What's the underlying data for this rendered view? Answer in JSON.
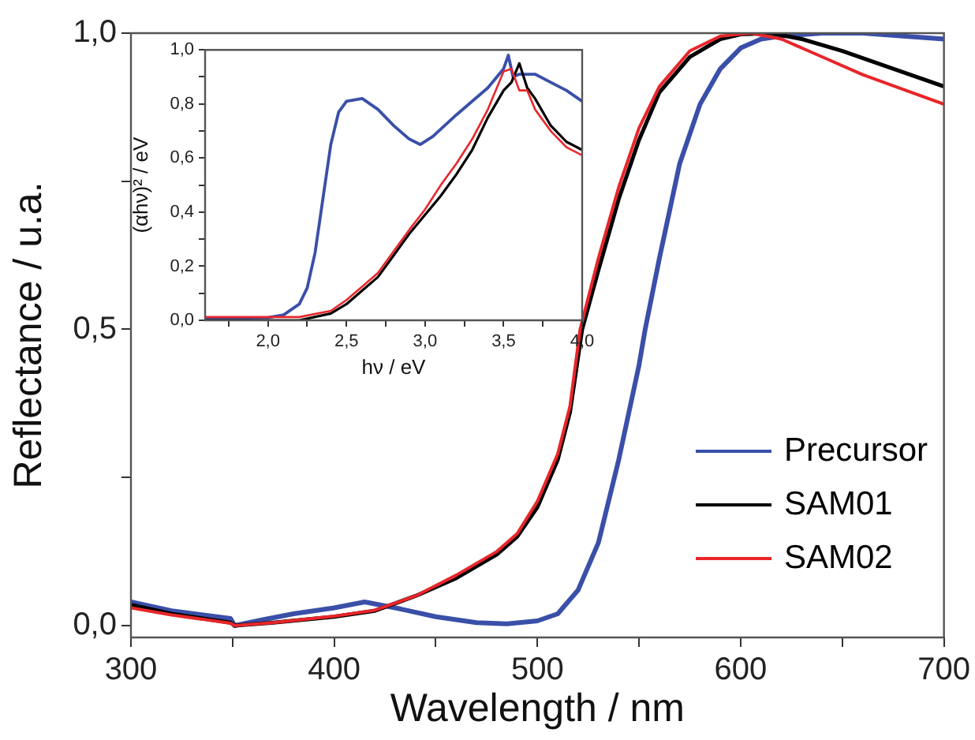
{
  "chart_data": [
    {
      "type": "line",
      "xlabel": "Wavelength / nm",
      "ylabel": "Reflectance / u.a.",
      "xlim": [
        300,
        700
      ],
      "ylim": [
        -0.02,
        1.0
      ],
      "xticks": [
        300,
        {
          "value": 350,
          "label": null
        },
        400,
        {
          "value": 450,
          "label": null
        },
        500,
        {
          "value": 550,
          "label": null
        },
        600,
        {
          "value": 650,
          "label": null
        },
        700
      ],
      "yticks": [
        {
          "value": 0,
          "label": "0,0"
        },
        {
          "value": 0.25,
          "label": null
        },
        {
          "value": 0.5,
          "label": "0,5"
        },
        {
          "value": 0.75,
          "label": null
        },
        {
          "value": 1.0,
          "label": "1,0"
        }
      ],
      "grid": false,
      "legend": "bottom right",
      "series": [
        {
          "name": "Precursor",
          "color": "#3a4fa8",
          "x": [
            300,
            320,
            349,
            351,
            365,
            380,
            400,
            415,
            430,
            450,
            470,
            485,
            500,
            510,
            520,
            530,
            540,
            550,
            553,
            560,
            570,
            580,
            590,
            600,
            610,
            620,
            640,
            660,
            680,
            700
          ],
          "values": [
            0.04,
            0.025,
            0.012,
            0.0,
            0.01,
            0.02,
            0.03,
            0.04,
            0.03,
            0.015,
            0.005,
            0.003,
            0.008,
            0.02,
            0.06,
            0.14,
            0.28,
            0.44,
            0.5,
            0.62,
            0.78,
            0.88,
            0.94,
            0.975,
            0.99,
            0.995,
            1.0,
            1.0,
            0.995,
            0.99
          ]
        },
        {
          "name": "SAM01",
          "color": "#000000",
          "x": [
            300,
            320,
            349,
            351,
            370,
            400,
            420,
            440,
            460,
            480,
            490,
            500,
            510,
            516,
            522,
            530,
            540,
            550,
            560,
            575,
            590,
            600,
            615,
            630,
            650,
            675,
            700
          ],
          "values": [
            0.035,
            0.02,
            0.005,
            0.0,
            0.005,
            0.015,
            0.025,
            0.05,
            0.08,
            0.12,
            0.15,
            0.2,
            0.28,
            0.36,
            0.5,
            0.6,
            0.72,
            0.82,
            0.9,
            0.96,
            0.99,
            0.998,
            1.0,
            0.99,
            0.97,
            0.94,
            0.91
          ]
        },
        {
          "name": "SAM02",
          "color": "#e8262a",
          "x": [
            300,
            320,
            349,
            351,
            370,
            400,
            420,
            440,
            460,
            480,
            490,
            500,
            510,
            516,
            521,
            530,
            540,
            550,
            560,
            575,
            590,
            605,
            620,
            640,
            660,
            680,
            700
          ],
          "values": [
            0.03,
            0.018,
            0.004,
            0.0,
            0.005,
            0.016,
            0.026,
            0.05,
            0.085,
            0.125,
            0.155,
            0.21,
            0.29,
            0.37,
            0.5,
            0.62,
            0.74,
            0.84,
            0.91,
            0.97,
            0.995,
            1.0,
            0.99,
            0.96,
            0.93,
            0.905,
            0.88
          ]
        }
      ]
    },
    {
      "type": "line",
      "xlabel": "hν / eV",
      "ylabel": "(αhν)² / eV",
      "xlim": [
        1.6,
        4.0
      ],
      "ylim": [
        0,
        1.0
      ],
      "xticks": [
        {
          "value": 1.75,
          "label": null
        },
        {
          "value": 2.0,
          "label": "2,0"
        },
        {
          "value": 2.25,
          "label": null
        },
        {
          "value": 2.5,
          "label": "2,5"
        },
        {
          "value": 2.75,
          "label": null
        },
        {
          "value": 3.0,
          "label": "3,0"
        },
        {
          "value": 3.25,
          "label": null
        },
        {
          "value": 3.5,
          "label": "3,5"
        },
        {
          "value": 3.75,
          "label": null
        },
        {
          "value": 4.0,
          "label": "4,0"
        }
      ],
      "yticks": [
        {
          "value": 0,
          "label": "0,0"
        },
        {
          "value": 0.1,
          "label": null
        },
        {
          "value": 0.2,
          "label": "0,2"
        },
        {
          "value": 0.3,
          "label": null
        },
        {
          "value": 0.4,
          "label": "0,4"
        },
        {
          "value": 0.5,
          "label": null
        },
        {
          "value": 0.6,
          "label": "0,6"
        },
        {
          "value": 0.7,
          "label": null
        },
        {
          "value": 0.8,
          "label": "0,8"
        },
        {
          "value": 0.9,
          "label": null
        },
        {
          "value": 1.0,
          "label": "1,0"
        }
      ],
      "grid": false,
      "series": [
        {
          "color": "#3a4fa8",
          "x": [
            1.6,
            2.0,
            2.1,
            2.2,
            2.25,
            2.3,
            2.35,
            2.4,
            2.45,
            2.5,
            2.6,
            2.7,
            2.8,
            2.9,
            2.97,
            3.05,
            3.2,
            3.4,
            3.5,
            3.53,
            3.56,
            3.6,
            3.7,
            3.8,
            3.9,
            4.0
          ],
          "values": [
            0.005,
            0.01,
            0.02,
            0.06,
            0.12,
            0.25,
            0.45,
            0.65,
            0.77,
            0.81,
            0.82,
            0.78,
            0.72,
            0.67,
            0.65,
            0.68,
            0.76,
            0.86,
            0.93,
            0.98,
            0.9,
            0.91,
            0.91,
            0.88,
            0.85,
            0.81
          ]
        },
        {
          "color": "#000000",
          "x": [
            1.6,
            2.2,
            2.4,
            2.5,
            2.6,
            2.7,
            2.8,
            2.9,
            3.0,
            3.1,
            3.2,
            3.3,
            3.4,
            3.5,
            3.55,
            3.6,
            3.65,
            3.7,
            3.8,
            3.9,
            4.0
          ],
          "values": [
            0.0,
            0.0,
            0.025,
            0.06,
            0.11,
            0.16,
            0.24,
            0.32,
            0.39,
            0.46,
            0.54,
            0.63,
            0.75,
            0.85,
            0.88,
            0.95,
            0.86,
            0.82,
            0.72,
            0.66,
            0.63
          ]
        },
        {
          "color": "#e8262a",
          "x": [
            1.6,
            2.2,
            2.4,
            2.5,
            2.6,
            2.7,
            2.8,
            2.9,
            3.0,
            3.1,
            3.2,
            3.3,
            3.4,
            3.5,
            3.55,
            3.6,
            3.65,
            3.7,
            3.8,
            3.9,
            4.0
          ],
          "values": [
            0.012,
            0.012,
            0.035,
            0.075,
            0.125,
            0.175,
            0.255,
            0.335,
            0.41,
            0.5,
            0.58,
            0.67,
            0.78,
            0.92,
            0.93,
            0.85,
            0.85,
            0.78,
            0.7,
            0.64,
            0.61
          ]
        }
      ]
    }
  ]
}
